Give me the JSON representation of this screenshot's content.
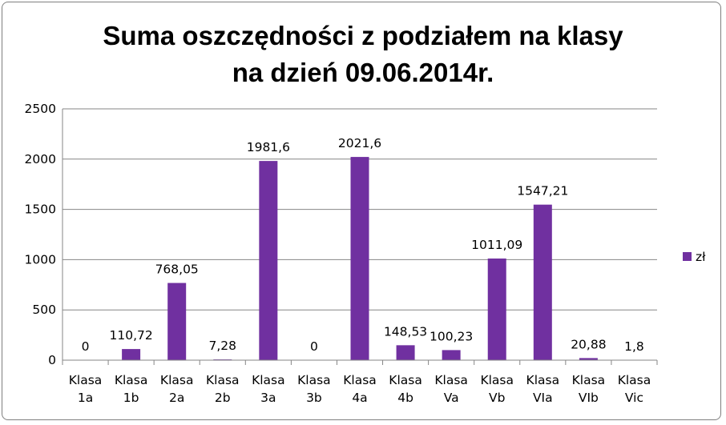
{
  "chart_data": {
    "type": "bar",
    "title_lines": [
      "Suma oszczędności z podziałem na klasy",
      "na dzień 09.06.2014r."
    ],
    "xlabel": "",
    "ylabel": "",
    "ylim": [
      0,
      2500
    ],
    "yticks": [
      0,
      500,
      1000,
      1500,
      2000,
      2500
    ],
    "grid": true,
    "legend_position": "right",
    "categories": [
      [
        "Klasa",
        "1a"
      ],
      [
        "Klasa",
        "1b"
      ],
      [
        "Klasa",
        "2a"
      ],
      [
        "Klasa",
        "2b"
      ],
      [
        "Klasa",
        "3a"
      ],
      [
        "Klasa",
        "3b"
      ],
      [
        "Klasa",
        "4a"
      ],
      [
        "Klasa",
        "4b"
      ],
      [
        "Klasa",
        "Va"
      ],
      [
        "Klasa",
        "Vb"
      ],
      [
        "Klasa",
        "VIa"
      ],
      [
        "Klasa",
        "VIb"
      ],
      [
        "Klasa",
        "Vic"
      ]
    ],
    "series": [
      {
        "name": "zł",
        "color": "#7030a0",
        "values": [
          0,
          110.72,
          768.05,
          7.28,
          1981.6,
          0,
          2021.6,
          148.53,
          100.23,
          1011.09,
          1547.21,
          20.88,
          1.8
        ],
        "labels": [
          "0",
          "110,72",
          "768,05",
          "7,28",
          "1981,6",
          "0",
          "2021,6",
          "148,53",
          "100,23",
          "1011,09",
          "1547,21",
          "20,88",
          "1,8"
        ]
      }
    ]
  }
}
